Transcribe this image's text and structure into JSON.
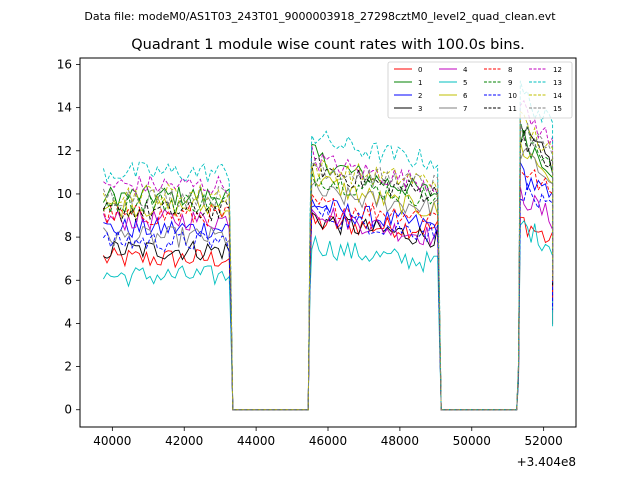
{
  "figure": {
    "suptitle": "Data file: modeM0/AS1T03_243T01_9000003918_27298cztM0_level2_quad_clean.evt",
    "offset_label": "+3.404e8"
  },
  "chart_data": {
    "type": "line",
    "title": "Quadrant 1 module wise count rates with 100.0s bins.",
    "xlabel": "",
    "ylabel": "",
    "xlim": [
      39100,
      52900
    ],
    "ylim": [
      -0.8,
      16.3
    ],
    "x_ticks": [
      40000,
      42000,
      44000,
      46000,
      48000,
      50000,
      52000
    ],
    "x_tick_labels": [
      "40000",
      "42000",
      "44000",
      "46000",
      "48000",
      "50000",
      "52000"
    ],
    "y_ticks": [
      0,
      2,
      4,
      6,
      8,
      10,
      12,
      14,
      16
    ],
    "y_tick_labels": [
      "0",
      "2",
      "4",
      "6",
      "8",
      "10",
      "12",
      "14",
      "16"
    ],
    "legend_position": "top-right",
    "segments": [
      {
        "start": 39750,
        "end": 43250,
        "shape": "flat"
      },
      {
        "start": 45550,
        "end": 49050,
        "shape": "decay"
      },
      {
        "start": 51350,
        "end": 52250,
        "shape": "spike"
      }
    ],
    "gaps": [
      {
        "start": 43350,
        "end": 45450
      },
      {
        "start": 49150,
        "end": 51250
      }
    ],
    "bin_width": 100,
    "series": [
      {
        "name": "0",
        "color": "#ff0000",
        "style": "solid",
        "levels": [
          7.0,
          8.7,
          8.4,
          8.8
        ]
      },
      {
        "name": "1",
        "color": "#008000",
        "style": "solid",
        "levels": [
          9.9,
          12.0,
          10.0,
          12.7
        ]
      },
      {
        "name": "2",
        "color": "#0000ff",
        "style": "solid",
        "levels": [
          8.4,
          9.7,
          8.5,
          11.0
        ]
      },
      {
        "name": "3",
        "color": "#000000",
        "style": "solid",
        "levels": [
          7.4,
          9.0,
          8.0,
          12.9
        ]
      },
      {
        "name": "4",
        "color": "#bf00bf",
        "style": "solid",
        "levels": [
          8.8,
          9.5,
          8.0,
          10.0
        ]
      },
      {
        "name": "5",
        "color": "#00bfbf",
        "style": "solid",
        "levels": [
          6.2,
          7.8,
          6.8,
          8.6
        ]
      },
      {
        "name": "6",
        "color": "#bfbf00",
        "style": "solid",
        "levels": [
          9.4,
          11.0,
          9.2,
          12.2
        ]
      },
      {
        "name": "7",
        "color": "#808080",
        "style": "solid",
        "levels": [
          8.0,
          10.2,
          9.4,
          12.0
        ]
      },
      {
        "name": "8",
        "color": "#ff0000",
        "style": "dashed",
        "levels": [
          9.0,
          9.6,
          9.0,
          11.3
        ]
      },
      {
        "name": "9",
        "color": "#008000",
        "style": "dashed",
        "levels": [
          9.6,
          11.0,
          9.8,
          13.0
        ]
      },
      {
        "name": "10",
        "color": "#0000ff",
        "style": "dashed",
        "levels": [
          7.8,
          9.3,
          8.2,
          10.3
        ]
      },
      {
        "name": "11",
        "color": "#000000",
        "style": "dashed",
        "levels": [
          9.2,
          11.5,
          10.0,
          12.8
        ]
      },
      {
        "name": "12",
        "color": "#bf00bf",
        "style": "dashed",
        "levels": [
          10.4,
          11.8,
          10.5,
          14.0
        ]
      },
      {
        "name": "13",
        "color": "#00bfbf",
        "style": "dashed",
        "levels": [
          11.0,
          12.8,
          11.5,
          14.8
        ]
      },
      {
        "name": "14",
        "color": "#bfbf00",
        "style": "dashed",
        "levels": [
          10.0,
          11.3,
          10.6,
          13.4
        ]
      },
      {
        "name": "15",
        "color": "#808080",
        "style": "dashed",
        "levels": [
          9.9,
          11.5,
          10.4,
          13.1
        ]
      }
    ]
  }
}
